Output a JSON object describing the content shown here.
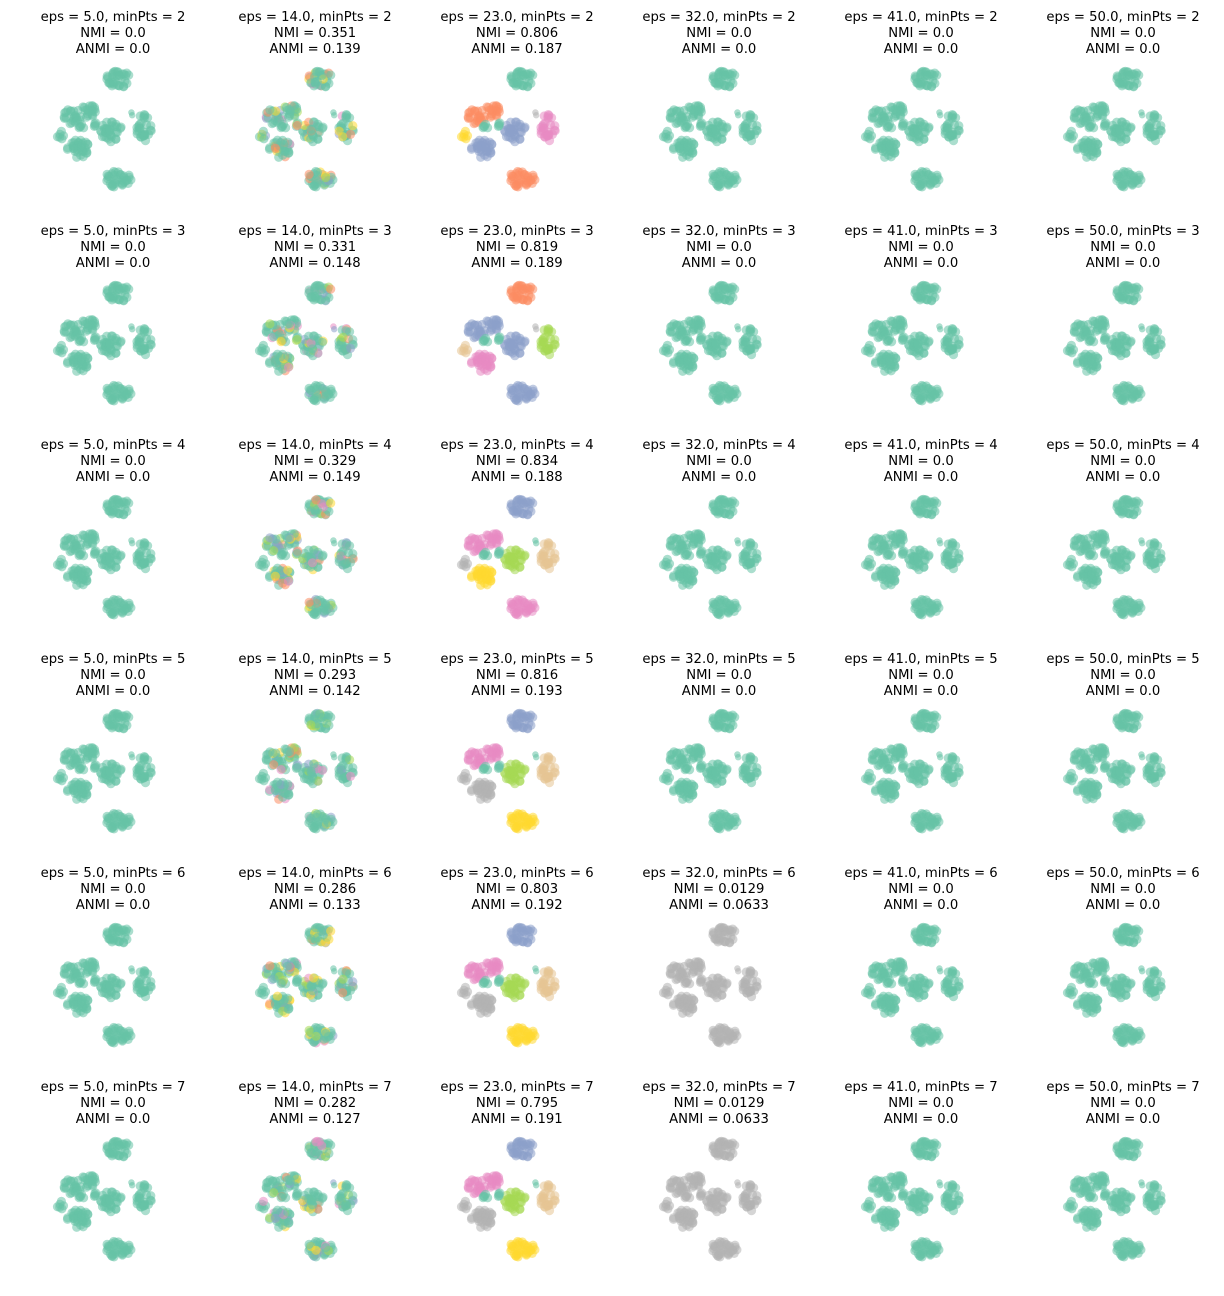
{
  "figure": {
    "palette": {
      "teal": "#66c2a5",
      "orange": "#fc8d62",
      "blue": "#8da0cb",
      "pink": "#e78ac3",
      "green": "#a6d854",
      "yellow": "#ffd92f",
      "tan": "#e5c494",
      "gray": "#b3b3b3"
    }
  },
  "chart_data": [
    {
      "type": "scatter",
      "eps": 5.0,
      "minPts": 2,
      "title_lines": [
        "eps = 5.0, minPts = 2",
        "NMI = 0.0",
        "ANMI = 0.0"
      ],
      "scheme": "teal"
    },
    {
      "type": "scatter",
      "eps": 14.0,
      "minPts": 2,
      "title_lines": [
        "eps = 14.0, minPts = 2",
        "NMI = 0.351",
        "ANMI = 0.139"
      ],
      "scheme": "speckled"
    },
    {
      "type": "scatter",
      "eps": 23.0,
      "minPts": 2,
      "title_lines": [
        "eps = 23.0, minPts = 2",
        "NMI = 0.806",
        "ANMI = 0.187"
      ],
      "scheme": "split_a"
    },
    {
      "type": "scatter",
      "eps": 32.0,
      "minPts": 2,
      "title_lines": [
        "eps = 32.0, minPts = 2",
        "NMI = 0.0",
        "ANMI = 0.0"
      ],
      "scheme": "teal"
    },
    {
      "type": "scatter",
      "eps": 41.0,
      "minPts": 2,
      "title_lines": [
        "eps = 41.0, minPts = 2",
        "NMI = 0.0",
        "ANMI = 0.0"
      ],
      "scheme": "teal"
    },
    {
      "type": "scatter",
      "eps": 50.0,
      "minPts": 2,
      "title_lines": [
        "eps = 50.0, minPts = 2",
        "NMI = 0.0",
        "ANMI = 0.0"
      ],
      "scheme": "teal"
    },
    {
      "type": "scatter",
      "eps": 5.0,
      "minPts": 3,
      "title_lines": [
        "eps = 5.0, minPts = 3",
        "NMI = 0.0",
        "ANMI = 0.0"
      ],
      "scheme": "teal"
    },
    {
      "type": "scatter",
      "eps": 14.0,
      "minPts": 3,
      "title_lines": [
        "eps = 14.0, minPts = 3",
        "NMI = 0.331",
        "ANMI = 0.148"
      ],
      "scheme": "speckled"
    },
    {
      "type": "scatter",
      "eps": 23.0,
      "minPts": 3,
      "title_lines": [
        "eps = 23.0, minPts = 3",
        "NMI = 0.819",
        "ANMI = 0.189"
      ],
      "scheme": "split_b"
    },
    {
      "type": "scatter",
      "eps": 32.0,
      "minPts": 3,
      "title_lines": [
        "eps = 32.0, minPts = 3",
        "NMI = 0.0",
        "ANMI = 0.0"
      ],
      "scheme": "teal"
    },
    {
      "type": "scatter",
      "eps": 41.0,
      "minPts": 3,
      "title_lines": [
        "eps = 41.0, minPts = 3",
        "NMI = 0.0",
        "ANMI = 0.0"
      ],
      "scheme": "teal"
    },
    {
      "type": "scatter",
      "eps": 50.0,
      "minPts": 3,
      "title_lines": [
        "eps = 50.0, minPts = 3",
        "NMI = 0.0",
        "ANMI = 0.0"
      ],
      "scheme": "teal"
    },
    {
      "type": "scatter",
      "eps": 5.0,
      "minPts": 4,
      "title_lines": [
        "eps = 5.0, minPts = 4",
        "NMI = 0.0",
        "ANMI = 0.0"
      ],
      "scheme": "teal"
    },
    {
      "type": "scatter",
      "eps": 14.0,
      "minPts": 4,
      "title_lines": [
        "eps = 14.0, minPts = 4",
        "NMI = 0.329",
        "ANMI = 0.149"
      ],
      "scheme": "speckled"
    },
    {
      "type": "scatter",
      "eps": 23.0,
      "minPts": 4,
      "title_lines": [
        "eps = 23.0, minPts = 4",
        "NMI = 0.834",
        "ANMI = 0.188"
      ],
      "scheme": "split_c"
    },
    {
      "type": "scatter",
      "eps": 32.0,
      "minPts": 4,
      "title_lines": [
        "eps = 32.0, minPts = 4",
        "NMI = 0.0",
        "ANMI = 0.0"
      ],
      "scheme": "teal"
    },
    {
      "type": "scatter",
      "eps": 41.0,
      "minPts": 4,
      "title_lines": [
        "eps = 41.0, minPts = 4",
        "NMI = 0.0",
        "ANMI = 0.0"
      ],
      "scheme": "teal"
    },
    {
      "type": "scatter",
      "eps": 50.0,
      "minPts": 4,
      "title_lines": [
        "eps = 50.0, minPts = 4",
        "NMI = 0.0",
        "ANMI = 0.0"
      ],
      "scheme": "teal"
    },
    {
      "type": "scatter",
      "eps": 5.0,
      "minPts": 5,
      "title_lines": [
        "eps = 5.0, minPts = 5",
        "NMI = 0.0",
        "ANMI = 0.0"
      ],
      "scheme": "teal"
    },
    {
      "type": "scatter",
      "eps": 14.0,
      "minPts": 5,
      "title_lines": [
        "eps = 14.0, minPts = 5",
        "NMI = 0.293",
        "ANMI = 0.142"
      ],
      "scheme": "speckled"
    },
    {
      "type": "scatter",
      "eps": 23.0,
      "minPts": 5,
      "title_lines": [
        "eps = 23.0, minPts = 5",
        "NMI = 0.816",
        "ANMI = 0.193"
      ],
      "scheme": "split_d"
    },
    {
      "type": "scatter",
      "eps": 32.0,
      "minPts": 5,
      "title_lines": [
        "eps = 32.0, minPts = 5",
        "NMI = 0.0",
        "ANMI = 0.0"
      ],
      "scheme": "teal"
    },
    {
      "type": "scatter",
      "eps": 41.0,
      "minPts": 5,
      "title_lines": [
        "eps = 41.0, minPts = 5",
        "NMI = 0.0",
        "ANMI = 0.0"
      ],
      "scheme": "teal"
    },
    {
      "type": "scatter",
      "eps": 50.0,
      "minPts": 5,
      "title_lines": [
        "eps = 50.0, minPts = 5",
        "NMI = 0.0",
        "ANMI = 0.0"
      ],
      "scheme": "teal"
    },
    {
      "type": "scatter",
      "eps": 5.0,
      "minPts": 6,
      "title_lines": [
        "eps = 5.0, minPts = 6",
        "NMI = 0.0",
        "ANMI = 0.0"
      ],
      "scheme": "teal"
    },
    {
      "type": "scatter",
      "eps": 14.0,
      "minPts": 6,
      "title_lines": [
        "eps = 14.0, minPts = 6",
        "NMI = 0.286",
        "ANMI = 0.133"
      ],
      "scheme": "speckled"
    },
    {
      "type": "scatter",
      "eps": 23.0,
      "minPts": 6,
      "title_lines": [
        "eps = 23.0, minPts = 6",
        "NMI = 0.803",
        "ANMI = 0.192"
      ],
      "scheme": "split_d"
    },
    {
      "type": "scatter",
      "eps": 32.0,
      "minPts": 6,
      "title_lines": [
        "eps = 32.0, minPts = 6",
        "NMI = 0.0129",
        "ANMI = 0.0633"
      ],
      "scheme": "gray"
    },
    {
      "type": "scatter",
      "eps": 41.0,
      "minPts": 6,
      "title_lines": [
        "eps = 41.0, minPts = 6",
        "NMI = 0.0",
        "ANMI = 0.0"
      ],
      "scheme": "teal"
    },
    {
      "type": "scatter",
      "eps": 50.0,
      "minPts": 6,
      "title_lines": [
        "eps = 50.0, minPts = 6",
        "NMI = 0.0",
        "ANMI = 0.0"
      ],
      "scheme": "teal"
    },
    {
      "type": "scatter",
      "eps": 5.0,
      "minPts": 7,
      "title_lines": [
        "eps = 5.0, minPts = 7",
        "NMI = 0.0",
        "ANMI = 0.0"
      ],
      "scheme": "teal"
    },
    {
      "type": "scatter",
      "eps": 14.0,
      "minPts": 7,
      "title_lines": [
        "eps = 14.0, minPts = 7",
        "NMI = 0.282",
        "ANMI = 0.127"
      ],
      "scheme": "speckled"
    },
    {
      "type": "scatter",
      "eps": 23.0,
      "minPts": 7,
      "title_lines": [
        "eps = 23.0, minPts = 7",
        "NMI = 0.795",
        "ANMI = 0.191"
      ],
      "scheme": "split_d"
    },
    {
      "type": "scatter",
      "eps": 32.0,
      "minPts": 7,
      "title_lines": [
        "eps = 32.0, minPts = 7",
        "NMI = 0.0129",
        "ANMI = 0.0633"
      ],
      "scheme": "gray"
    },
    {
      "type": "scatter",
      "eps": 41.0,
      "minPts": 7,
      "title_lines": [
        "eps = 41.0, minPts = 7",
        "NMI = 0.0",
        "ANMI = 0.0"
      ],
      "scheme": "teal"
    },
    {
      "type": "scatter",
      "eps": 50.0,
      "minPts": 7,
      "title_lines": [
        "eps = 50.0, minPts = 7",
        "NMI = 0.0",
        "ANMI = 0.0"
      ],
      "scheme": "teal"
    }
  ]
}
